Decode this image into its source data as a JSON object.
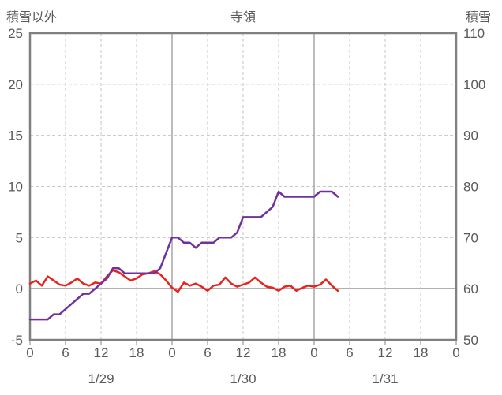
{
  "chart_data": {
    "type": "line",
    "title": "寺領",
    "left_axis": {
      "title": "積雪以外",
      "min": -5,
      "max": 25,
      "ticks": [
        25,
        20,
        15,
        10,
        5,
        0,
        -5
      ]
    },
    "right_axis": {
      "title": "積雪",
      "min": 50,
      "max": 110,
      "ticks": [
        110,
        100,
        90,
        80,
        70,
        60,
        50
      ]
    },
    "x_axis": {
      "min_hour": 0,
      "max_hour": 72,
      "tick_hours": [
        0,
        6,
        12,
        18,
        24,
        30,
        36,
        42,
        48,
        54,
        60,
        66,
        72
      ],
      "tick_labels": [
        "0",
        "6",
        "12",
        "18",
        "0",
        "6",
        "12",
        "18",
        "0",
        "6",
        "12",
        "18",
        "0"
      ],
      "day_boundaries": [
        24,
        48
      ],
      "day_labels": [
        {
          "label": "1/29",
          "center_hour": 12
        },
        {
          "label": "1/30",
          "center_hour": 36
        },
        {
          "label": "1/31",
          "center_hour": 60
        }
      ]
    },
    "grid": {
      "h_gridlines_dashed": true,
      "v_gridlines_dashed": true,
      "zero_line_solid": true
    },
    "colors": {
      "red_series": "#e8221c",
      "purple_series": "#7030a0",
      "text": "#595959",
      "border": "#808080",
      "gridline": "#c6c6c6",
      "day_line": "#a6a6a6",
      "zero_line": "#808080"
    },
    "hours": [
      0,
      1,
      2,
      3,
      4,
      5,
      6,
      7,
      8,
      9,
      10,
      11,
      12,
      13,
      14,
      15,
      16,
      17,
      18,
      19,
      20,
      21,
      22,
      23,
      24,
      25,
      26,
      27,
      28,
      29,
      30,
      31,
      32,
      33,
      34,
      35,
      36,
      37,
      38,
      39,
      40,
      41,
      42,
      43,
      44,
      45,
      46,
      47,
      48,
      49,
      50,
      51,
      52
    ],
    "series": [
      {
        "name": "積雪以外",
        "axis": "left",
        "color_key": "red_series",
        "values": [
          0.5,
          0.8,
          0.3,
          1.2,
          0.8,
          0.4,
          0.3,
          0.6,
          1.0,
          0.5,
          0.3,
          0.6,
          0.5,
          1.2,
          1.8,
          1.6,
          1.2,
          0.8,
          1.0,
          1.4,
          1.5,
          1.7,
          1.4,
          0.8,
          0.1,
          -0.3,
          0.6,
          0.3,
          0.5,
          0.2,
          -0.2,
          0.3,
          0.4,
          1.1,
          0.5,
          0.2,
          0.4,
          0.6,
          1.1,
          0.6,
          0.2,
          0.1,
          -0.2,
          0.2,
          0.3,
          -0.2,
          0.1,
          0.3,
          0.2,
          0.4,
          0.9,
          0.3,
          -0.2
        ]
      },
      {
        "name": "積雪",
        "axis": "right",
        "color_key": "purple_series",
        "values": [
          54,
          54,
          54,
          54,
          55,
          55,
          56,
          57,
          58,
          59,
          59,
          60,
          61,
          62,
          64,
          64,
          63,
          63,
          63,
          63,
          63,
          63,
          64,
          67,
          70,
          70,
          69,
          69,
          68,
          69,
          69,
          69,
          70,
          70,
          70,
          71,
          74,
          74,
          74,
          74,
          75,
          76,
          79,
          78,
          78,
          78,
          78,
          78,
          78,
          79,
          79,
          79,
          78
        ]
      }
    ]
  }
}
